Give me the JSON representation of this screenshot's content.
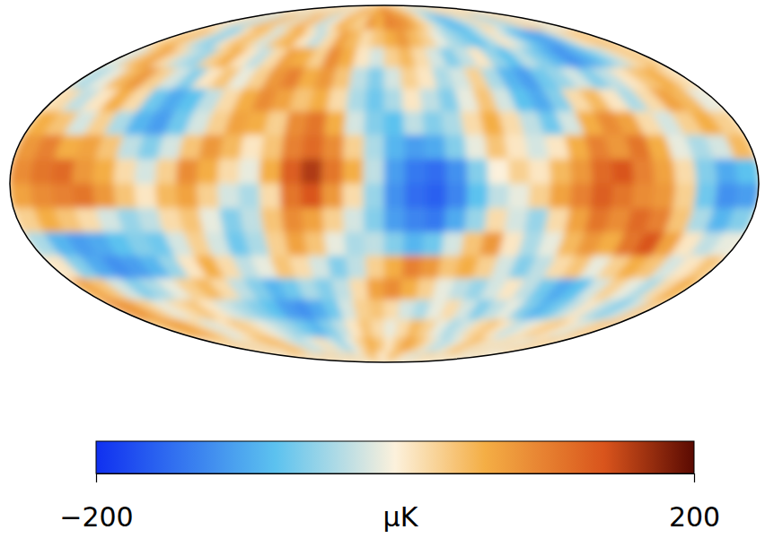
{
  "chart_data": {
    "type": "heatmap",
    "cells": [
      [
        20,
        -30,
        40,
        10,
        -20,
        30,
        60,
        20,
        -10,
        40,
        30,
        -20,
        10,
        50,
        70,
        40,
        60,
        80,
        90,
        70,
        60,
        40,
        30,
        -10,
        -40,
        -60,
        -30,
        20,
        40,
        10,
        -20,
        30,
        50,
        20,
        -10,
        30
      ],
      [
        40,
        10,
        -30,
        -50,
        20,
        60,
        40,
        -20,
        30,
        70,
        20,
        -40,
        10,
        60,
        40,
        30,
        80,
        60,
        100,
        90,
        80,
        50,
        20,
        -30,
        -70,
        -90,
        -60,
        -20,
        30,
        -10,
        -60,
        -40,
        20,
        40,
        10,
        -20
      ],
      [
        30,
        60,
        20,
        -40,
        -60,
        10,
        50,
        30,
        -20,
        40,
        60,
        10,
        -30,
        20,
        70,
        50,
        20,
        40,
        60,
        80,
        50,
        30,
        -10,
        -40,
        -60,
        -80,
        -40,
        10,
        -20,
        -70,
        -100,
        -110,
        -60,
        10,
        30,
        50
      ],
      [
        -20,
        40,
        70,
        20,
        -30,
        -50,
        30,
        60,
        10,
        -30,
        20,
        70,
        60,
        30,
        90,
        60,
        10,
        -20,
        30,
        50,
        20,
        -20,
        -60,
        -30,
        10,
        -50,
        -80,
        -30,
        -60,
        -90,
        -120,
        -100,
        -70,
        -30,
        20,
        40
      ],
      [
        -40,
        -10,
        50,
        80,
        30,
        -20,
        -60,
        10,
        40,
        -10,
        30,
        80,
        100,
        60,
        80,
        40,
        -30,
        -60,
        -20,
        30,
        10,
        -40,
        -20,
        30,
        -40,
        -90,
        -110,
        -70,
        -50,
        -20,
        -60,
        -30,
        10,
        40,
        60,
        20
      ],
      [
        20,
        -30,
        10,
        60,
        20,
        -70,
        -100,
        -80,
        -30,
        20,
        60,
        90,
        70,
        40,
        60,
        20,
        -40,
        -70,
        -40,
        10,
        -30,
        -60,
        -10,
        40,
        -20,
        -80,
        -100,
        -60,
        20,
        50,
        10,
        -40,
        20,
        70,
        50,
        -10
      ],
      [
        60,
        40,
        -20,
        30,
        -40,
        -90,
        -110,
        -70,
        -20,
        30,
        70,
        60,
        30,
        90,
        110,
        60,
        -20,
        -60,
        -80,
        -30,
        -60,
        -40,
        20,
        60,
        20,
        -30,
        -70,
        -20,
        60,
        90,
        70,
        20,
        -20,
        30,
        60,
        30
      ],
      [
        80,
        100,
        60,
        70,
        40,
        -30,
        -60,
        -20,
        40,
        80,
        50,
        10,
        40,
        100,
        120,
        90,
        30,
        -40,
        -90,
        -110,
        -100,
        -60,
        -10,
        40,
        10,
        -20,
        10,
        60,
        100,
        80,
        110,
        60,
        -10,
        -40,
        -20,
        50
      ],
      [
        90,
        110,
        120,
        80,
        60,
        20,
        -20,
        30,
        90,
        60,
        20,
        -10,
        60,
        130,
        160,
        110,
        60,
        -30,
        -110,
        -140,
        -150,
        -120,
        -60,
        0,
        30,
        10,
        50,
        80,
        120,
        140,
        100,
        70,
        20,
        -60,
        -100,
        -80
      ],
      [
        70,
        90,
        100,
        110,
        80,
        40,
        10,
        50,
        70,
        30,
        -20,
        -40,
        20,
        110,
        140,
        80,
        20,
        -50,
        -120,
        -150,
        -160,
        -130,
        -80,
        -30,
        -10,
        30,
        70,
        100,
        130,
        110,
        90,
        80,
        30,
        -70,
        -120,
        -110
      ],
      [
        30,
        60,
        40,
        20,
        -20,
        -50,
        -30,
        20,
        40,
        -10,
        -60,
        -30,
        40,
        90,
        70,
        30,
        -20,
        -60,
        -110,
        -130,
        -140,
        -100,
        -50,
        20,
        -20,
        -50,
        20,
        70,
        110,
        90,
        120,
        100,
        40,
        -40,
        -90,
        -60
      ],
      [
        -40,
        -90,
        -110,
        -100,
        -80,
        -60,
        -70,
        -20,
        30,
        -20,
        -70,
        -40,
        30,
        70,
        40,
        -10,
        -40,
        -30,
        -60,
        -90,
        -70,
        -20,
        40,
        80,
        10,
        -40,
        -10,
        50,
        80,
        60,
        110,
        140,
        70,
        10,
        -30,
        -10
      ],
      [
        10,
        -60,
        -100,
        -120,
        -110,
        -90,
        -50,
        10,
        60,
        20,
        -30,
        -10,
        40,
        20,
        -20,
        -60,
        -30,
        30,
        60,
        100,
        80,
        40,
        60,
        30,
        -20,
        -60,
        -30,
        20,
        40,
        -10,
        30,
        60,
        40,
        -20,
        10,
        40
      ],
      [
        70,
        40,
        -20,
        -60,
        -40,
        -10,
        30,
        50,
        20,
        -30,
        -60,
        -90,
        -70,
        -40,
        -60,
        -30,
        20,
        70,
        90,
        60,
        30,
        -10,
        -30,
        -50,
        -20,
        10,
        -30,
        -70,
        -100,
        -80,
        -20,
        30,
        -10,
        -40,
        20,
        60
      ],
      [
        90,
        70,
        30,
        -10,
        20,
        40,
        10,
        -20,
        -40,
        -60,
        -80,
        -110,
        -120,
        -100,
        -70,
        -20,
        30,
        40,
        20,
        -20,
        -40,
        -10,
        20,
        -20,
        -60,
        -30,
        -10,
        -60,
        -90,
        -70,
        -30,
        10,
        -30,
        -60,
        -20,
        40
      ],
      [
        50,
        80,
        60,
        20,
        -20,
        10,
        40,
        20,
        -10,
        -30,
        -50,
        -70,
        -90,
        -60,
        -30,
        10,
        40,
        20,
        -10,
        20,
        50,
        30,
        -10,
        -40,
        -20,
        20,
        40,
        10,
        -30,
        -10,
        20,
        40,
        10,
        -20,
        20,
        50
      ],
      [
        20,
        50,
        30,
        -10,
        20,
        40,
        60,
        30,
        -20,
        -40,
        -10,
        20,
        -20,
        -50,
        -10,
        30,
        60,
        40,
        10,
        40,
        70,
        50,
        20,
        -20,
        -40,
        -10,
        30,
        50,
        20,
        -10,
        30,
        10,
        -20,
        10,
        40,
        30
      ],
      [
        40,
        20,
        -10,
        30,
        50,
        20,
        -20,
        10,
        40,
        20,
        -30,
        10,
        30,
        -10,
        20,
        50,
        30,
        0,
        20,
        50,
        40,
        10,
        -10,
        -30,
        10,
        40,
        20,
        -10,
        20,
        40,
        10,
        -20,
        20,
        30,
        10,
        -10
      ]
    ],
    "colorbar": {
      "range": [
        -200,
        200
      ],
      "ticks": [
        {
          "value": -200,
          "label": "−200"
        },
        200
      ],
      "label": "μK"
    }
  }
}
